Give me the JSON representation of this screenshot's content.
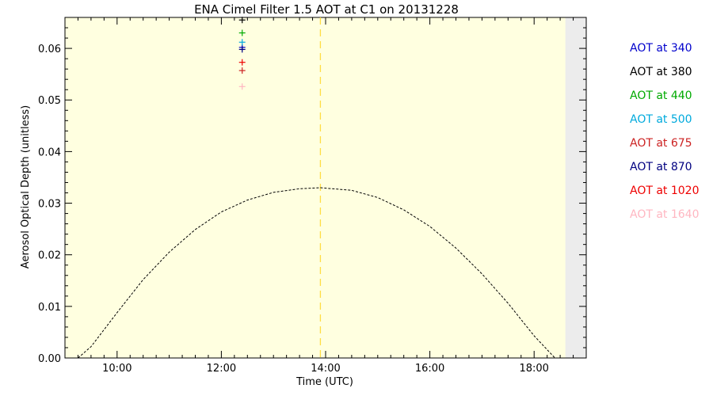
{
  "chart_data": {
    "type": "scatter",
    "title": "ENA Cimel Filter 1.5 AOT at C1 on 20131228",
    "xlabel": "Time (UTC)",
    "ylabel": "Aerosol Optical Depth (unitless)",
    "xlim_hours": [
      9.0,
      19.0
    ],
    "ylim": [
      0.0,
      0.066
    ],
    "x_ticks": [
      {
        "value": 10,
        "label": "10:00"
      },
      {
        "value": 12,
        "label": "12:00"
      },
      {
        "value": 14,
        "label": "14:00"
      },
      {
        "value": 16,
        "label": "16:00"
      },
      {
        "value": 18,
        "label": "18:00"
      }
    ],
    "y_ticks": [
      {
        "value": 0.0,
        "label": "0.00"
      },
      {
        "value": 0.01,
        "label": "0.01"
      },
      {
        "value": 0.02,
        "label": "0.02"
      },
      {
        "value": 0.03,
        "label": "0.03"
      },
      {
        "value": 0.04,
        "label": "0.04"
      },
      {
        "value": 0.05,
        "label": "0.05"
      },
      {
        "value": 0.06,
        "label": "0.06"
      }
    ],
    "series": [
      {
        "name": "AOT at 340",
        "color": "#0000cc",
        "points": [
          {
            "x": 12.4,
            "y": 0.0602
          }
        ]
      },
      {
        "name": "AOT at 380",
        "color": "#000000",
        "points": [
          {
            "x": 12.4,
            "y": 0.0655
          }
        ]
      },
      {
        "name": "AOT at 440",
        "color": "#00aa00",
        "points": [
          {
            "x": 12.4,
            "y": 0.063
          }
        ]
      },
      {
        "name": "AOT at 500",
        "color": "#00aadd",
        "points": [
          {
            "x": 12.4,
            "y": 0.0612
          }
        ]
      },
      {
        "name": "AOT at 675",
        "color": "#cc2222",
        "points": [
          {
            "x": 12.4,
            "y": 0.0557
          }
        ]
      },
      {
        "name": "AOT at 870",
        "color": "#000080",
        "points": [
          {
            "x": 12.4,
            "y": 0.0598
          }
        ]
      },
      {
        "name": "AOT at 1020",
        "color": "#ee0000",
        "points": [
          {
            "x": 12.4,
            "y": 0.0573
          }
        ]
      },
      {
        "name": "AOT at 1640",
        "color": "#ffb6c1",
        "points": [
          {
            "x": 12.4,
            "y": 0.0526
          }
        ]
      }
    ],
    "solar_curve": {
      "style": "dashed",
      "color": "#000000",
      "points": [
        {
          "x": 9.25,
          "y": 0.0
        },
        {
          "x": 9.5,
          "y": 0.0022
        },
        {
          "x": 10.0,
          "y": 0.0088
        },
        {
          "x": 10.5,
          "y": 0.0152
        },
        {
          "x": 11.0,
          "y": 0.0205
        },
        {
          "x": 11.5,
          "y": 0.0249
        },
        {
          "x": 12.0,
          "y": 0.0283
        },
        {
          "x": 12.5,
          "y": 0.0306
        },
        {
          "x": 13.0,
          "y": 0.0321
        },
        {
          "x": 13.5,
          "y": 0.0328
        },
        {
          "x": 13.9,
          "y": 0.033
        },
        {
          "x": 14.5,
          "y": 0.0325
        },
        {
          "x": 15.0,
          "y": 0.0311
        },
        {
          "x": 15.5,
          "y": 0.0287
        },
        {
          "x": 16.0,
          "y": 0.0255
        },
        {
          "x": 16.5,
          "y": 0.0213
        },
        {
          "x": 17.0,
          "y": 0.0163
        },
        {
          "x": 17.5,
          "y": 0.0106
        },
        {
          "x": 18.0,
          "y": 0.0043
        },
        {
          "x": 18.4,
          "y": 0.0
        }
      ]
    },
    "solar_noon": {
      "x": 13.9,
      "color": "#ffdd44",
      "style": "dashed"
    },
    "daylight_window": [
      9.0,
      18.6
    ],
    "colors": {
      "plot_background": "#ffffe0",
      "night_background": "#ececec"
    },
    "grid": false,
    "legend_placement": "right"
  }
}
